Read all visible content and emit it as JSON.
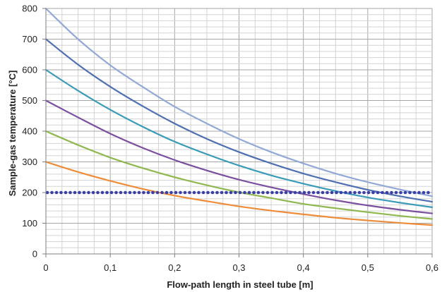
{
  "chart_data": {
    "type": "line",
    "title": "",
    "xlabel": "Flow-path length in steel tube [m]",
    "ylabel": "Sample-gas temperature [°C]",
    "xlim": [
      0,
      0.6
    ],
    "ylim": [
      0,
      800
    ],
    "x_ticks": [
      {
        "value": 0,
        "label": "0"
      },
      {
        "value": 0.1,
        "label": "0,1"
      },
      {
        "value": 0.2,
        "label": "0,2"
      },
      {
        "value": 0.3,
        "label": "0,3"
      },
      {
        "value": 0.4,
        "label": "0,4"
      },
      {
        "value": 0.5,
        "label": "0,5"
      },
      {
        "value": 0.6,
        "label": "0,6"
      }
    ],
    "y_ticks": [
      {
        "value": 0,
        "label": "0"
      },
      {
        "value": 100,
        "label": "100"
      },
      {
        "value": 200,
        "label": "200"
      },
      {
        "value": 300,
        "label": "300"
      },
      {
        "value": 400,
        "label": "400"
      },
      {
        "value": 500,
        "label": "500"
      },
      {
        "value": 600,
        "label": "600"
      },
      {
        "value": 700,
        "label": "700"
      },
      {
        "value": 800,
        "label": "800"
      }
    ],
    "grid": true,
    "legend": "none",
    "x": [
      0,
      0.05,
      0.1,
      0.15,
      0.2,
      0.25,
      0.3,
      0.35,
      0.4,
      0.45,
      0.5,
      0.55,
      0.6
    ],
    "series": [
      {
        "color": "#92a9d8",
        "values": [
          800,
          700,
          615,
          545,
          480,
          425,
          375,
          332,
          295,
          262,
          234,
          210,
          188
        ]
      },
      {
        "color": "#4f6fb3",
        "values": [
          700,
          617,
          545,
          482,
          425,
          375,
          332,
          295,
          262,
          234,
          209,
          188,
          170
        ]
      },
      {
        "color": "#3a9bb8",
        "values": [
          600,
          532,
          470,
          415,
          366,
          325,
          288,
          256,
          229,
          205,
          184,
          167,
          152
        ]
      },
      {
        "color": "#7b4fa0",
        "values": [
          500,
          445,
          392,
          346,
          306,
          272,
          242,
          217,
          195,
          175,
          158,
          144,
          132
        ]
      },
      {
        "color": "#8fb84f",
        "values": [
          400,
          355,
          314,
          280,
          250,
          224,
          201,
          182,
          163,
          149,
          136,
          124,
          114
        ]
      },
      {
        "color": "#ee8c3a",
        "values": [
          300,
          267,
          238,
          212,
          190,
          172,
          155,
          141,
          129,
          118,
          109,
          101,
          94
        ]
      },
      {
        "color": "#3b3fa8",
        "style": "dotted",
        "values": [
          200,
          200,
          200,
          200,
          200,
          200,
          200,
          200,
          200,
          200,
          200,
          200,
          200
        ]
      }
    ]
  }
}
